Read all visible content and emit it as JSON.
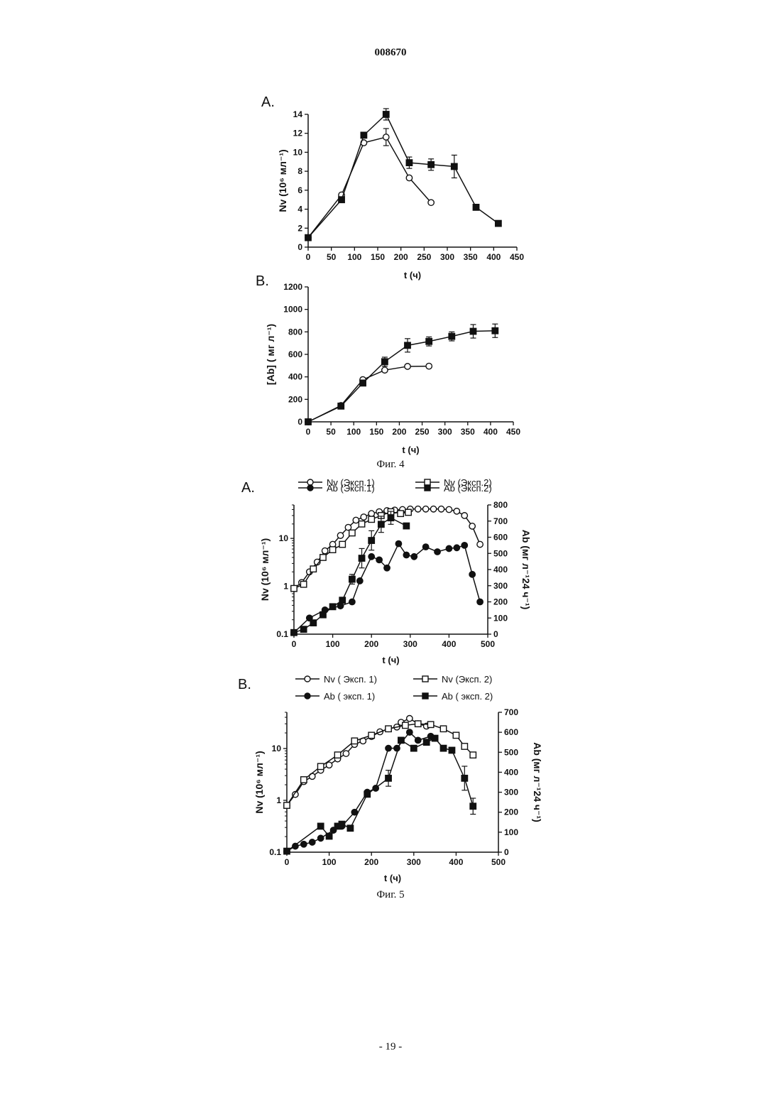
{
  "page": {
    "header": "008670",
    "footer": "- 19 -",
    "captions": [
      "Фиг. 4",
      "Фиг. 5"
    ]
  },
  "chart_data": [
    {
      "id": "fig4A",
      "panel_label": "A.",
      "type": "line",
      "xlabel": "t (ч)",
      "ylabel": "Nv (10⁶ мл⁻¹)",
      "xlim": [
        0,
        450
      ],
      "ylim": [
        0,
        14
      ],
      "xticks": [
        0,
        50,
        100,
        150,
        200,
        250,
        300,
        350,
        400,
        450
      ],
      "yticks": [
        0,
        2,
        4,
        6,
        8,
        10,
        12,
        14
      ],
      "series": [
        {
          "marker": "open-circle",
          "x": [
            0,
            72,
            120,
            168,
            218,
            265
          ],
          "y": [
            1.0,
            5.5,
            11.0,
            11.6,
            7.3,
            4.7
          ],
          "err": [
            0,
            0,
            0,
            0.9,
            0,
            0
          ]
        },
        {
          "marker": "filled-square",
          "x": [
            0,
            72,
            120,
            168,
            218,
            265,
            315,
            362,
            410
          ],
          "y": [
            1.0,
            5.0,
            11.8,
            14.0,
            8.9,
            8.7,
            8.5,
            4.2,
            2.5
          ],
          "err": [
            0,
            0,
            0,
            0.6,
            0.6,
            0.6,
            1.2,
            0,
            0
          ]
        }
      ]
    },
    {
      "id": "fig4B",
      "panel_label": "B.",
      "type": "line",
      "xlabel": "t (ч)",
      "ylabel": "[Ab] ( мг л⁻¹)",
      "xlim": [
        0,
        450
      ],
      "ylim": [
        0,
        1200
      ],
      "xticks": [
        0,
        50,
        100,
        150,
        200,
        250,
        300,
        350,
        400,
        450
      ],
      "yticks": [
        0,
        200,
        400,
        600,
        800,
        1000,
        1200
      ],
      "series": [
        {
          "marker": "open-circle",
          "x": [
            0,
            72,
            120,
            168,
            218,
            265
          ],
          "y": [
            0,
            145,
            375,
            460,
            493,
            495
          ],
          "err": [
            0,
            0,
            0,
            0,
            0,
            0
          ]
        },
        {
          "marker": "filled-square",
          "x": [
            0,
            72,
            120,
            168,
            218,
            265,
            315,
            362,
            410
          ],
          "y": [
            0,
            140,
            345,
            535,
            680,
            715,
            760,
            805,
            810
          ],
          "err": [
            0,
            0,
            0,
            40,
            60,
            40,
            40,
            60,
            60
          ]
        }
      ]
    },
    {
      "id": "fig5A",
      "panel_label": "A.",
      "type": "line",
      "xlabel": "t (ч)",
      "ylabel": "Nv (10⁶ мл⁻¹)",
      "y2label": "Ab (мг л⁻¹24 ч⁻¹)",
      "xlim": [
        0,
        500
      ],
      "ylim": [
        0.1,
        50
      ],
      "yscale": "log",
      "y2lim": [
        0,
        800
      ],
      "xticks": [
        0,
        100,
        200,
        300,
        400,
        500
      ],
      "yticks": [
        0.1,
        1,
        10
      ],
      "ytick_labels": [
        "0.1",
        "1",
        "10"
      ],
      "y2ticks": [
        0,
        100,
        200,
        300,
        400,
        500,
        600,
        700,
        800
      ],
      "legend": [
        {
          "marker": "open-circle",
          "label": "Nv (Эксп.1)"
        },
        {
          "marker": "open-square",
          "label": "Nv (Эксп.2)"
        },
        {
          "marker": "filled-circle",
          "label": "Ab (Эксп.1)"
        },
        {
          "marker": "filled-square",
          "label": "Ab (Эксп.2)"
        }
      ],
      "series": [
        {
          "name": "Nv (Эксп.1)",
          "marker": "open-circle",
          "axis": "left",
          "x": [
            0,
            20,
            40,
            60,
            80,
            100,
            120,
            140,
            160,
            180,
            200,
            220,
            240,
            260,
            280,
            300,
            320,
            340,
            360,
            380,
            400,
            420,
            440,
            460,
            480
          ],
          "y": [
            0.9,
            1.2,
            2.0,
            3.2,
            5.5,
            7.5,
            11.5,
            17,
            24,
            28,
            33,
            36,
            38,
            39,
            40,
            41,
            41,
            41,
            41,
            41,
            40,
            37,
            30,
            18,
            7.5
          ]
        },
        {
          "name": "Nv (Эксп.2)",
          "marker": "open-square",
          "axis": "left",
          "x": [
            0,
            25,
            50,
            75,
            100,
            125,
            150,
            175,
            200,
            225,
            250,
            275,
            295
          ],
          "y": [
            0.9,
            1.1,
            2.3,
            4.0,
            5.8,
            7.5,
            13,
            20,
            25,
            30,
            36,
            33,
            35
          ]
        },
        {
          "name": "Ab (Эксп.1)",
          "marker": "filled-circle",
          "axis": "right",
          "x": [
            0,
            40,
            80,
            120,
            150,
            170,
            200,
            220,
            240,
            270,
            290,
            310,
            340,
            370,
            400,
            420,
            440,
            460,
            480
          ],
          "y": [
            10,
            100,
            150,
            175,
            200,
            330,
            480,
            460,
            410,
            560,
            490,
            480,
            540,
            510,
            530,
            535,
            550,
            370,
            200
          ]
        },
        {
          "name": "Ab (Эксп.2)",
          "marker": "filled-square",
          "axis": "right",
          "x": [
            0,
            25,
            50,
            75,
            100,
            125,
            150,
            175,
            200,
            225,
            250,
            290
          ],
          "y": [
            10,
            30,
            70,
            120,
            170,
            210,
            340,
            470,
            580,
            680,
            720,
            670
          ],
          "err": [
            0,
            0,
            0,
            0,
            0,
            0,
            30,
            60,
            60,
            50,
            40,
            0
          ]
        }
      ]
    },
    {
      "id": "fig5B",
      "panel_label": "B.",
      "type": "line",
      "xlabel": "t (ч)",
      "ylabel": "Nv  (10⁶ мл⁻¹)",
      "y2label": "Ab (мг л⁻¹24 ч⁻¹)",
      "xlim": [
        0,
        500
      ],
      "ylim": [
        0.1,
        50
      ],
      "yscale": "log",
      "y2lim": [
        0,
        700
      ],
      "xticks": [
        0,
        100,
        200,
        300,
        400,
        500
      ],
      "yticks": [
        0.1,
        1,
        10
      ],
      "ytick_labels": [
        "0.1",
        "1",
        "10"
      ],
      "y2ticks": [
        0,
        100,
        200,
        300,
        400,
        500,
        600,
        700
      ],
      "legend": [
        {
          "marker": "open-circle",
          "label": "Nv ( Эксп. 1)"
        },
        {
          "marker": "open-square",
          "label": "Nv (Эксп. 2)"
        },
        {
          "marker": "filled-circle",
          "label": "Ab ( эксп. 1)"
        },
        {
          "marker": "filled-square",
          "label": "Ab ( эксп. 2)"
        }
      ],
      "series": [
        {
          "name": "Nv ( Эксп. 1)",
          "marker": "open-circle",
          "axis": "left",
          "x": [
            0,
            20,
            40,
            60,
            80,
            100,
            120,
            140,
            160,
            180,
            200,
            220,
            240,
            260,
            270,
            290,
            310,
            330
          ],
          "y": [
            0.8,
            1.3,
            2.3,
            2.9,
            3.8,
            4.8,
            6.3,
            8.0,
            12,
            14,
            17,
            21,
            24,
            26,
            32,
            38,
            30,
            27
          ]
        },
        {
          "name": "Nv (Эксп. 2)",
          "marker": "open-square",
          "axis": "left",
          "x": [
            0,
            40,
            80,
            120,
            160,
            200,
            240,
            280,
            310,
            340,
            370,
            400,
            420,
            440
          ],
          "y": [
            0.8,
            2.5,
            4.5,
            7.5,
            14,
            18,
            24,
            28,
            30,
            29,
            24,
            18,
            11,
            7.5
          ]
        },
        {
          "name": "Ab ( эксп. 1)",
          "marker": "filled-circle",
          "axis": "right",
          "x": [
            0,
            20,
            40,
            60,
            80,
            110,
            130,
            160,
            190,
            210,
            240,
            260,
            290,
            310,
            340
          ],
          "y": [
            5,
            30,
            40,
            50,
            70,
            110,
            130,
            200,
            300,
            320,
            520,
            520,
            600,
            560,
            580
          ]
        },
        {
          "name": "Ab ( эксп. 2)",
          "marker": "filled-square",
          "axis": "right",
          "x": [
            0,
            80,
            100,
            120,
            130,
            150,
            190,
            240,
            270,
            300,
            330,
            350,
            370,
            390,
            420,
            440
          ],
          "y": [
            5,
            130,
            80,
            130,
            140,
            120,
            290,
            370,
            560,
            520,
            550,
            570,
            520,
            510,
            370,
            230
          ],
          "err": [
            0,
            0,
            0,
            0,
            0,
            0,
            0,
            40,
            0,
            0,
            0,
            0,
            0,
            0,
            60,
            40
          ]
        }
      ]
    }
  ]
}
